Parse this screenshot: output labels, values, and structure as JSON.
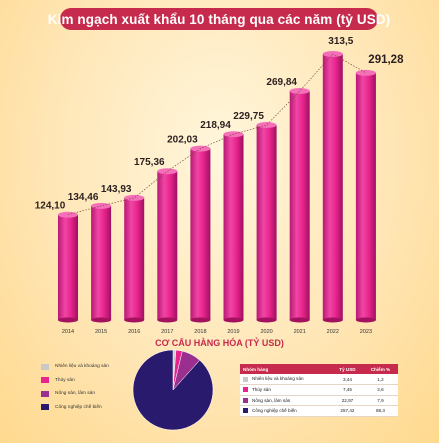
{
  "chart_data": {
    "type": "bar",
    "title": "Kim ngạch xuất khẩu 10 tháng qua các năm (tỷ USD)",
    "categories": [
      "2014",
      "2015",
      "2016",
      "2017",
      "2018",
      "2019",
      "2020",
      "2021",
      "2022",
      "2023"
    ],
    "values": [
      124.1,
      134.46,
      143.93,
      175.36,
      202.03,
      218.94,
      229.75,
      269.84,
      313.5,
      291.28
    ],
    "value_labels": [
      "124,10",
      "134,46",
      "143,93",
      "175,36",
      "202,03",
      "218,94",
      "229,75",
      "269,84",
      "313,5",
      "291,28"
    ],
    "bar_color": "#e8248c",
    "trend_line": true,
    "grid": false
  },
  "structure": {
    "title": "CƠ CẤU HÀNG HÓA (TỶ USD)",
    "legend": [
      {
        "label": "Nhiên liệu và khoáng sản",
        "color": "#c9c9c9"
      },
      {
        "label": "Thủy sản",
        "color": "#e8248c"
      },
      {
        "label": "Nông sản, lâm sản",
        "color": "#9b2f8f"
      },
      {
        "label": "Công nghiệp chế biến",
        "color": "#2a1a6e"
      }
    ],
    "pie_values": [
      3.44,
      7.45,
      22.97,
      257.42
    ],
    "table": {
      "headers": [
        "Nhóm hàng",
        "Tỷ USD",
        "Chiếm %"
      ],
      "rows": [
        {
          "name": "Nhiên liệu và khoáng sản",
          "value": "3,44",
          "percent": "1,2",
          "color": "#c9c9c9"
        },
        {
          "name": "Thủy sản",
          "value": "7,45",
          "percent": "2,6",
          "color": "#e8248c"
        },
        {
          "name": "Nông sản, lâm sản",
          "value": "22,97",
          "percent": "7,9",
          "color": "#9b2f8f"
        },
        {
          "name": "Công nghiệp chế biến",
          "value": "257,42",
          "percent": "88,3",
          "color": "#2a1a6e"
        }
      ]
    }
  }
}
